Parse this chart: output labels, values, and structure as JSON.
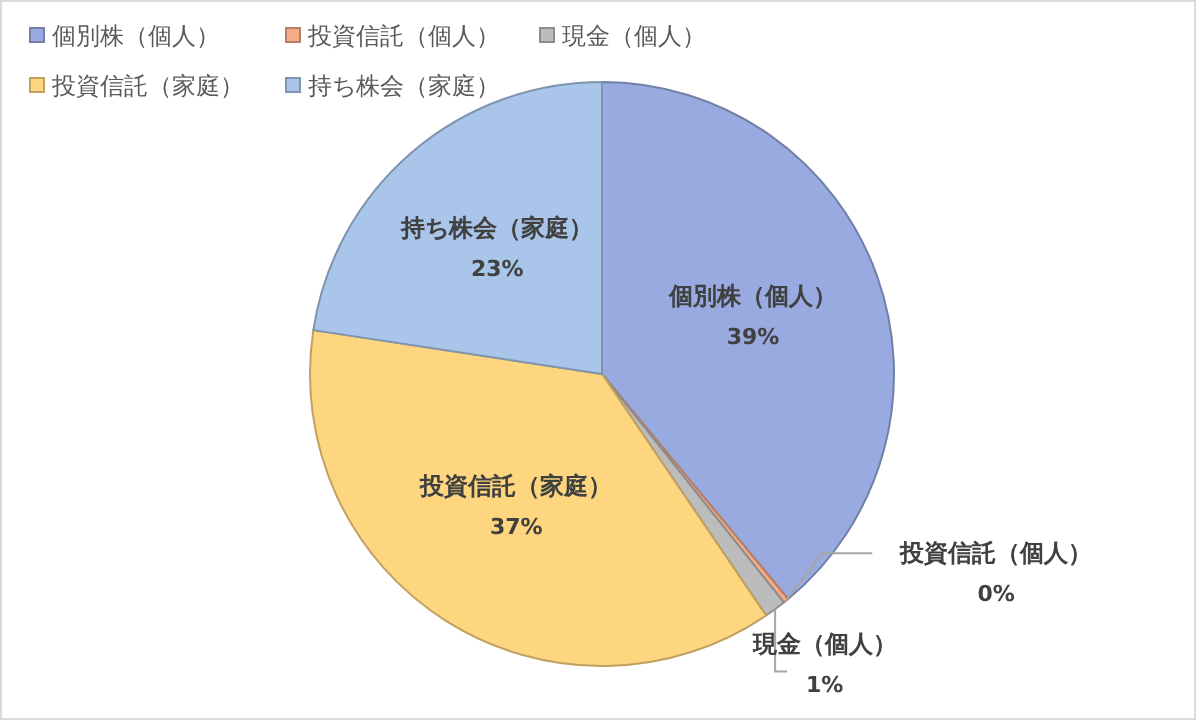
{
  "chart_data": {
    "type": "pie",
    "categories": [
      "個別株（個人）",
      "投資信託（個人）",
      "現金（個人）",
      "投資信託（家庭）",
      "持ち株会（家庭）"
    ],
    "values": [
      39,
      0.3,
      1.2,
      36.9,
      22.6
    ],
    "value_labels": [
      "39%",
      "0%",
      "1%",
      "37%",
      "23%"
    ],
    "colors": [
      "#98aadf",
      "#f4ab88",
      "#bcbcbc",
      "#ffd680",
      "#a9c5ea"
    ],
    "legend": "top"
  }
}
